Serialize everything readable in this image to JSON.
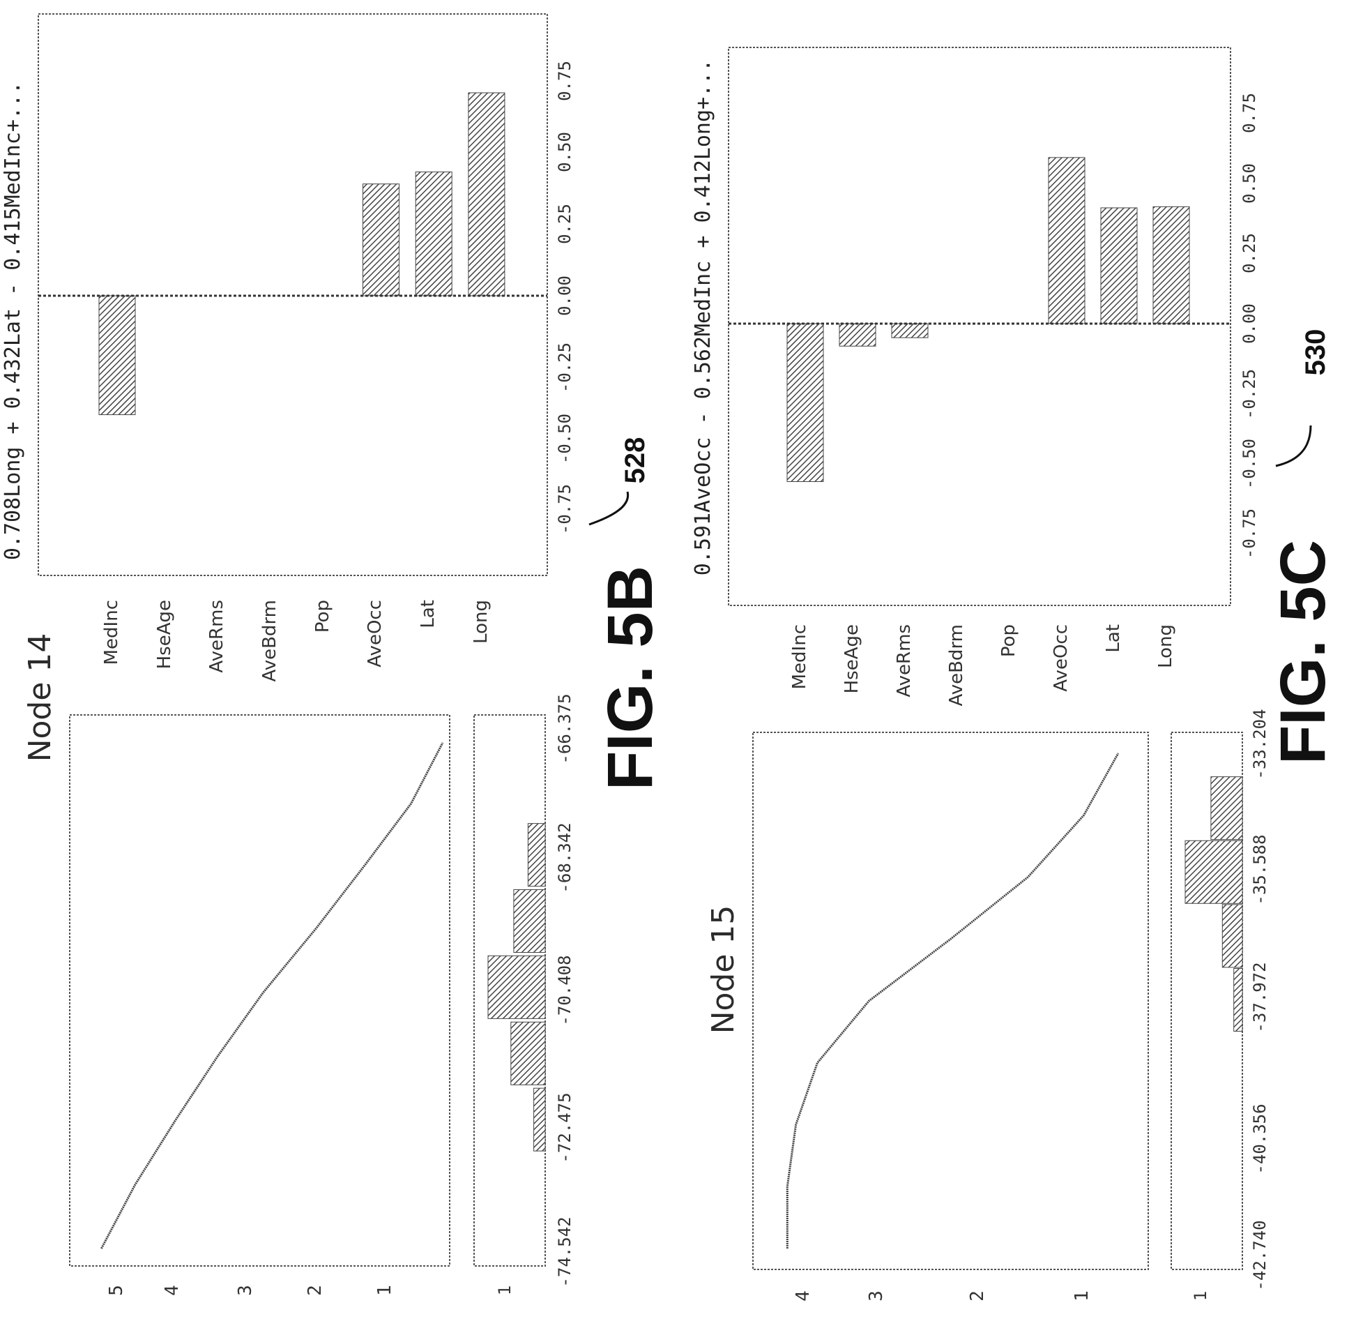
{
  "colors": {
    "ink": "#2b2b2b",
    "frame": "#555555",
    "hatch": "#444444"
  },
  "figures": [
    {
      "fig_label": "FIG. 5B",
      "ref_number": "528",
      "node_title": "Node 14",
      "curve_panel": {
        "y_ticks": [
          "5",
          "4",
          "3",
          "2",
          "1"
        ],
        "x_ticks": [
          "-74.542",
          "-72.475",
          "-70.408",
          "-68.342",
          "-66.375"
        ],
        "hist_tick": "1"
      },
      "bar_panel": {
        "equation": "0.708Long + 0.432Lat - 0.415MedInc+...",
        "features": [
          "MedInc",
          "HseAge",
          "AveRms",
          "AveBdrm",
          "Pop",
          "AveOcc",
          "Lat",
          "Long"
        ],
        "x_ticks": [
          "-0.75",
          "-0.50",
          "-0.25",
          "0.00",
          "0.25",
          "0.50",
          "0.75"
        ]
      }
    },
    {
      "fig_label": "FIG. 5C",
      "ref_number": "530",
      "node_title": "Node 15",
      "curve_panel": {
        "y_ticks": [
          "4",
          "3",
          "2",
          "1"
        ],
        "x_ticks": [
          "-42.740",
          "-40.356",
          "-37.972",
          "-35.588",
          "-33.204"
        ],
        "hist_tick": "1"
      },
      "bar_panel": {
        "equation": "0.591AveOcc - 0.562MedInc + 0.412Long+...",
        "features": [
          "MedInc",
          "HseAge",
          "AveRms",
          "AveBdrm",
          "Pop",
          "AveOcc",
          "Lat",
          "Long"
        ],
        "x_ticks": [
          "-0.75",
          "-0.50",
          "-0.25",
          "0.00",
          "0.25",
          "0.50",
          "0.75"
        ]
      }
    }
  ],
  "chart_data": [
    {
      "type": "bar",
      "orientation": "horizontal",
      "figure": "FIG. 5B",
      "categories": [
        "MedInc",
        "HseAge",
        "AveRms",
        "AveBdrm",
        "Pop",
        "AveOcc",
        "Lat",
        "Long"
      ],
      "values": [
        -0.415,
        0.0,
        0.0,
        0.0,
        0.0,
        0.39,
        0.432,
        0.708
      ],
      "xlim": [
        -0.9,
        0.9
      ],
      "reference_line": 0.0
    },
    {
      "type": "line",
      "figure": "FIG. 5B",
      "title": "Node 14",
      "x": [
        -74.542,
        -73.5085,
        -72.475,
        -71.4415,
        -70.408,
        -69.375,
        -68.342,
        -67.3585,
        -66.375
      ],
      "y": [
        5.25,
        4.77,
        4.2,
        3.6,
        2.95,
        2.2,
        1.5,
        0.85,
        0.4
      ],
      "xlim": [
        -74.542,
        -66.375
      ],
      "ylim": [
        0.3,
        5.7
      ]
    },
    {
      "type": "bar",
      "figure": "FIG. 5B",
      "title": "Node 14 histogram",
      "x": [
        -72.475,
        -71.442,
        -70.408,
        -69.375,
        -68.342
      ],
      "values": [
        0.2,
        0.6,
        1.0,
        0.55,
        0.3
      ],
      "xlim": [
        -74.542,
        -66.375
      ]
    },
    {
      "type": "bar",
      "orientation": "horizontal",
      "figure": "FIG. 5C",
      "categories": [
        "MedInc",
        "HseAge",
        "AveRms",
        "AveBdrm",
        "Pop",
        "AveOcc",
        "Lat",
        "Long"
      ],
      "values": [
        -0.562,
        -0.08,
        -0.05,
        0.0,
        0.0,
        0.591,
        0.412,
        0.416
      ],
      "xlim": [
        -0.9,
        0.9
      ],
      "reference_line": 0.0
    },
    {
      "type": "line",
      "figure": "FIG. 5C",
      "title": "Node 15",
      "x": [
        -42.74,
        -41.548,
        -40.356,
        -39.164,
        -37.972,
        -36.78,
        -35.588,
        -34.396,
        -33.204
      ],
      "y": [
        4.4,
        4.4,
        4.3,
        4.05,
        3.45,
        2.5,
        1.6,
        0.95,
        0.55
      ],
      "xlim": [
        -42.74,
        -33.204
      ],
      "ylim": [
        0.2,
        4.8
      ]
    },
    {
      "type": "bar",
      "figure": "FIG. 5C",
      "title": "Node 15 histogram",
      "x": [
        -37.972,
        -36.78,
        -35.588,
        -34.396
      ],
      "values": [
        0.15,
        0.35,
        1.0,
        0.55
      ],
      "xlim": [
        -42.74,
        -33.204
      ]
    }
  ]
}
